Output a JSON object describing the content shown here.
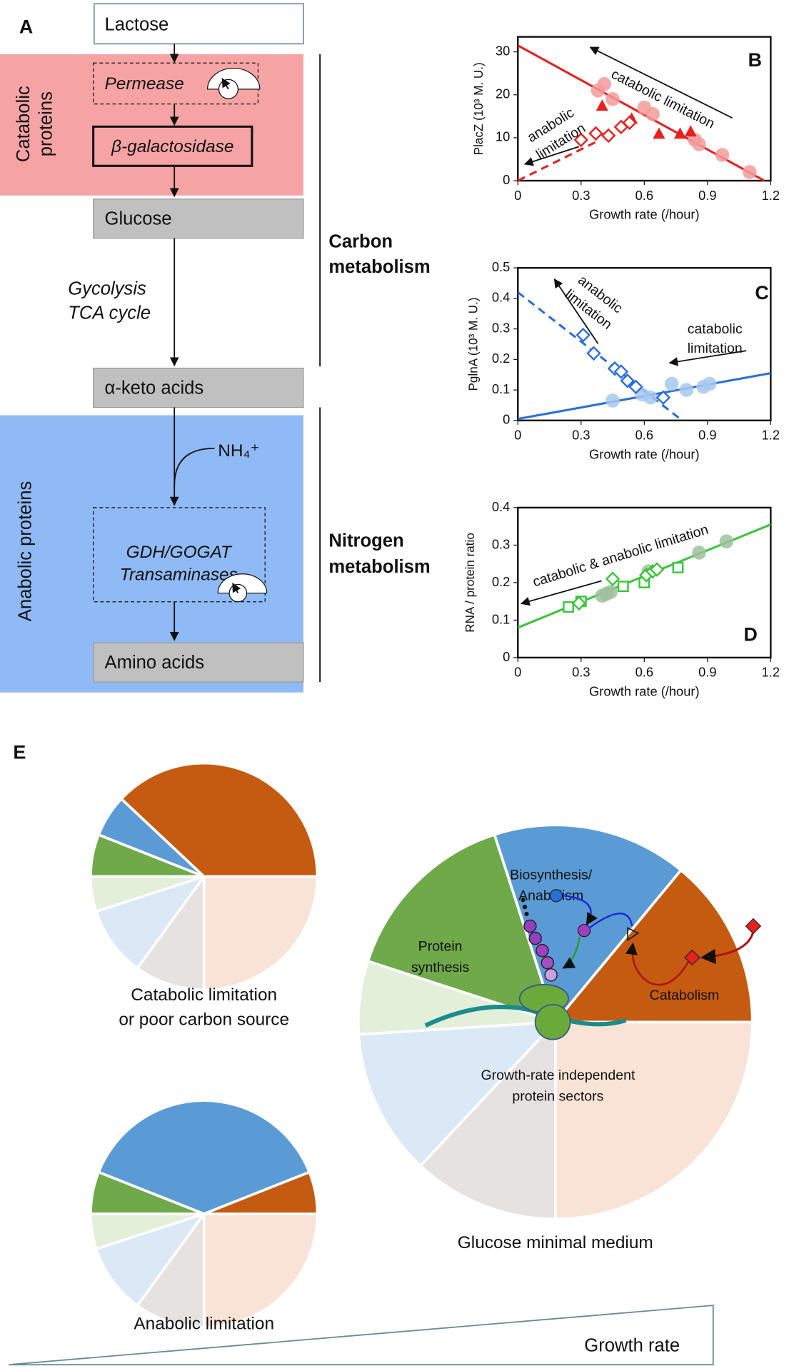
{
  "panel_labels": [
    "A",
    "B",
    "C",
    "D",
    "E"
  ],
  "diagram": {
    "nodes": [
      "Lactose",
      "Permease",
      "β-galactosidase",
      "Glucose",
      "α-keto acids",
      "GDH/GOGAT",
      "Transaminases",
      "Amino acids"
    ],
    "pathway": [
      "Gycolysis",
      "TCA cycle"
    ],
    "reactant": "NH₄⁺",
    "groups": [
      [
        "Catabolic",
        "proteins"
      ],
      [
        "Anabolic proteins"
      ]
    ],
    "brackets": [
      [
        "Carbon",
        "metabolism"
      ],
      [
        "Nitrogen",
        "metabolism"
      ]
    ]
  },
  "chart_data": [
    {
      "type": "scatter",
      "xlabel": "Growth rate (/hour)",
      "ylabel": "PlacZ (10³ M. U.)",
      "xlim": [
        0,
        1.2
      ],
      "ylim": [
        0,
        33.5
      ],
      "xticks": [
        0,
        0.3,
        0.6,
        0.9,
        1.2
      ],
      "yticks": [
        0,
        10,
        20,
        30
      ],
      "annotations": [
        [
          "catabolic limitation"
        ],
        [
          "anabolic",
          "limitation"
        ]
      ],
      "series": [
        {
          "marker": "line",
          "color": "#e8201e",
          "x": [
            0,
            1.17
          ],
          "values": [
            31.5,
            0
          ]
        },
        {
          "marker": "line",
          "color": "#e8201e",
          "dash": true,
          "x": [
            0,
            0.37
          ],
          "values": [
            0,
            9
          ]
        },
        {
          "marker": "circle",
          "color": "#f59a9a",
          "x": [
            0.38,
            0.41,
            0.45,
            0.6,
            0.64,
            0.84,
            0.86,
            0.97,
            1.1
          ],
          "values": [
            21,
            22.5,
            19,
            17,
            15.5,
            9.5,
            8.5,
            6,
            2
          ]
        },
        {
          "marker": "triangle",
          "color": "#e8201e",
          "x": [
            0.4,
            0.54,
            0.67,
            0.77,
            0.82
          ],
          "values": [
            17.5,
            14.5,
            11,
            11,
            11.5
          ]
        },
        {
          "marker": "diamond",
          "color": "#e8201e",
          "x": [
            0.3,
            0.37,
            0.43,
            0.49,
            0.53
          ],
          "values": [
            9.5,
            11,
            10.5,
            12.5,
            13.5
          ]
        }
      ]
    },
    {
      "type": "scatter",
      "xlabel": "Growth rate (/hour)",
      "ylabel": "PglnA (10³ M. U.)",
      "xlim": [
        0,
        1.2
      ],
      "ylim": [
        0,
        0.5
      ],
      "xticks": [
        0,
        0.3,
        0.6,
        0.9,
        1.2
      ],
      "yticks": [
        0,
        0.1,
        0.2,
        0.3,
        0.4,
        0.5
      ],
      "annotations": [
        [
          "anabolic",
          "limitation"
        ],
        [
          "catabolic",
          "limitation"
        ]
      ],
      "series": [
        {
          "marker": "line",
          "color": "#2a6fd6",
          "x": [
            0,
            1.2
          ],
          "values": [
            0.005,
            0.155
          ]
        },
        {
          "marker": "line",
          "color": "#2a6fd6",
          "dash": true,
          "x": [
            0,
            0.78
          ],
          "values": [
            0.42,
            0
          ]
        },
        {
          "marker": "circle",
          "color": "#a6c8ee",
          "x": [
            0.45,
            0.59,
            0.63,
            0.73,
            0.8,
            0.88,
            0.91
          ],
          "values": [
            0.065,
            0.085,
            0.075,
            0.12,
            0.1,
            0.11,
            0.12
          ]
        },
        {
          "marker": "diamond",
          "color": "#2a6fd6",
          "x": [
            0.31,
            0.36,
            0.46,
            0.49,
            0.52,
            0.56,
            0.69
          ],
          "values": [
            0.28,
            0.22,
            0.17,
            0.16,
            0.13,
            0.11,
            0.075
          ]
        }
      ]
    },
    {
      "type": "scatter",
      "xlabel": "Growth rate (/hour)",
      "ylabel": "RNA / protein ratio",
      "xlim": [
        0,
        1.2
      ],
      "ylim": [
        0,
        0.4
      ],
      "xticks": [
        0,
        0.3,
        0.6,
        0.9,
        1.2
      ],
      "yticks": [
        0,
        0.1,
        0.2,
        0.3,
        0.4
      ],
      "annotations": [
        [
          "catabolic & anabolic limitation"
        ]
      ],
      "series": [
        {
          "marker": "line",
          "color": "#3cc43c",
          "x": [
            0,
            1.2
          ],
          "values": [
            0.08,
            0.355
          ]
        },
        {
          "marker": "circle",
          "color": "#9dbf9d",
          "x": [
            0.4,
            0.42,
            0.44,
            0.62,
            0.86,
            0.99
          ],
          "values": [
            0.165,
            0.17,
            0.175,
            0.23,
            0.28,
            0.31
          ]
        },
        {
          "marker": "square",
          "color": "#3cc43c",
          "x": [
            0.24,
            0.3,
            0.5,
            0.6,
            0.76
          ],
          "values": [
            0.135,
            0.15,
            0.19,
            0.2,
            0.24
          ]
        },
        {
          "marker": "diamond",
          "color": "#3cc43c",
          "x": [
            0.29,
            0.45,
            0.61,
            0.64,
            0.66
          ],
          "values": [
            0.145,
            0.21,
            0.22,
            0.23,
            0.235
          ]
        }
      ]
    },
    {
      "type": "pie",
      "title": [
        "Catabolic limitation",
        "or poor carbon source"
      ],
      "values": [
        25,
        10,
        10,
        5,
        6,
        6,
        38
      ],
      "colors": [
        "#f9e3d6",
        "#e6e2e2",
        "#dbe8f5",
        "#e3efd9",
        "#6fa94a",
        "#5b9bd5",
        "#c55a11"
      ]
    },
    {
      "type": "pie",
      "title": [
        "Glucose minimal medium"
      ],
      "values": [
        25,
        12,
        12,
        6,
        15,
        16,
        14
      ],
      "colors": [
        "#f9e3d6",
        "#e6e2e2",
        "#dbe8f5",
        "#e3efd9",
        "#6fa94a",
        "#5b9bd5",
        "#c55a11"
      ],
      "categories": [
        null,
        null,
        null,
        null,
        [
          "Protein",
          "synthesis"
        ],
        [
          "Biosynthesis/",
          "Anabolism"
        ],
        [
          "Catabolism"
        ]
      ],
      "annotation": [
        "Growth-rate independent",
        "protein sectors"
      ]
    },
    {
      "type": "pie",
      "title": [
        "Anabolic limitation"
      ],
      "values": [
        25,
        10,
        10,
        5,
        6,
        38,
        6
      ],
      "colors": [
        "#f9e3d6",
        "#e6e2e2",
        "#dbe8f5",
        "#e3efd9",
        "#6fa94a",
        "#5b9bd5",
        "#c55a11"
      ]
    }
  ],
  "growth_axis": "Growth rate"
}
